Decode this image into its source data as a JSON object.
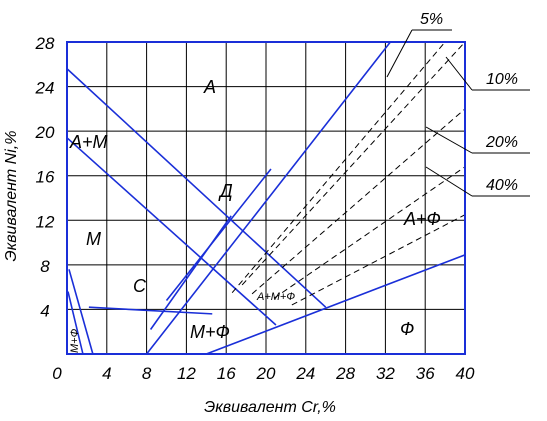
{
  "axes": {
    "x_label": "Эквивалент Cr,%",
    "y_label": "Эквивалент Ni,%",
    "x_ticks": [
      "0",
      "4",
      "8",
      "12",
      "16",
      "20",
      "24",
      "28",
      "32",
      "36",
      "40"
    ],
    "y_ticks": [
      "4",
      "8",
      "12",
      "16",
      "20",
      "24",
      "28"
    ],
    "xlim": [
      0,
      40
    ],
    "ylim": [
      0,
      28
    ]
  },
  "regions": {
    "A": "А",
    "A_M": "А+М",
    "M": "М",
    "D": "Д",
    "C": "С",
    "A_F": "А+Ф",
    "A_M_F": "А+М+Ф",
    "M_F": "М+Ф",
    "F": "Ф",
    "M_F_vertical": "М+Ф"
  },
  "ferrite_callouts": [
    "5%",
    "10%",
    "20%",
    "40%"
  ],
  "colors": {
    "boundary": "#1a2fd8",
    "grid": "#000000",
    "dashed": "#000000",
    "background": "#ffffff"
  },
  "chart_data": {
    "type": "phase_diagram",
    "xlim": [
      0,
      40
    ],
    "ylim": [
      0,
      28
    ],
    "grid": true,
    "boundaries": [
      {
        "name": "A / A+M upper",
        "points": [
          [
            0,
            25.6
          ],
          [
            26,
            4.2
          ]
        ]
      },
      {
        "name": "A+M / M",
        "points": [
          [
            0,
            19.4
          ],
          [
            21,
            2.6
          ]
        ]
      },
      {
        "name": "A / A+F",
        "points": [
          [
            8,
            0
          ],
          [
            32.5,
            28
          ]
        ]
      },
      {
        "name": "M / C",
        "points": [
          [
            2.2,
            4.2
          ],
          [
            14.6,
            3.6
          ]
        ]
      },
      {
        "name": "D upper",
        "points": [
          [
            10,
            4.8
          ],
          [
            20.5,
            16.6
          ]
        ]
      },
      {
        "name": "D lower",
        "points": [
          [
            8.4,
            2.2
          ],
          [
            16.5,
            12.4
          ]
        ]
      },
      {
        "name": "M+F / F",
        "points": [
          [
            14,
            0
          ],
          [
            40,
            8.9
          ]
        ]
      },
      {
        "name": "M+F strip",
        "points": [
          [
            0.2,
            7.6
          ],
          [
            2.6,
            0
          ]
        ]
      },
      {
        "name": "M+F strip edge",
        "points": [
          [
            0.1,
            5.6
          ],
          [
            1.6,
            0
          ]
        ]
      }
    ],
    "ferrite_lines": [
      {
        "label": "5%",
        "points": [
          [
            16.6,
            5.5
          ],
          [
            38,
            28
          ]
        ]
      },
      {
        "label": "10%",
        "points": [
          [
            17.6,
            6.2
          ],
          [
            40,
            28
          ]
        ]
      },
      {
        "label": "20%",
        "points": [
          [
            18.6,
            5.4
          ],
          [
            40,
            22
          ]
        ]
      },
      {
        "label": "40%",
        "points": [
          [
            20.8,
            5
          ],
          [
            40,
            16.8
          ]
        ]
      },
      {
        "label": "",
        "points": [
          [
            22.6,
            4.4
          ],
          [
            40,
            12.5
          ]
        ]
      }
    ]
  }
}
